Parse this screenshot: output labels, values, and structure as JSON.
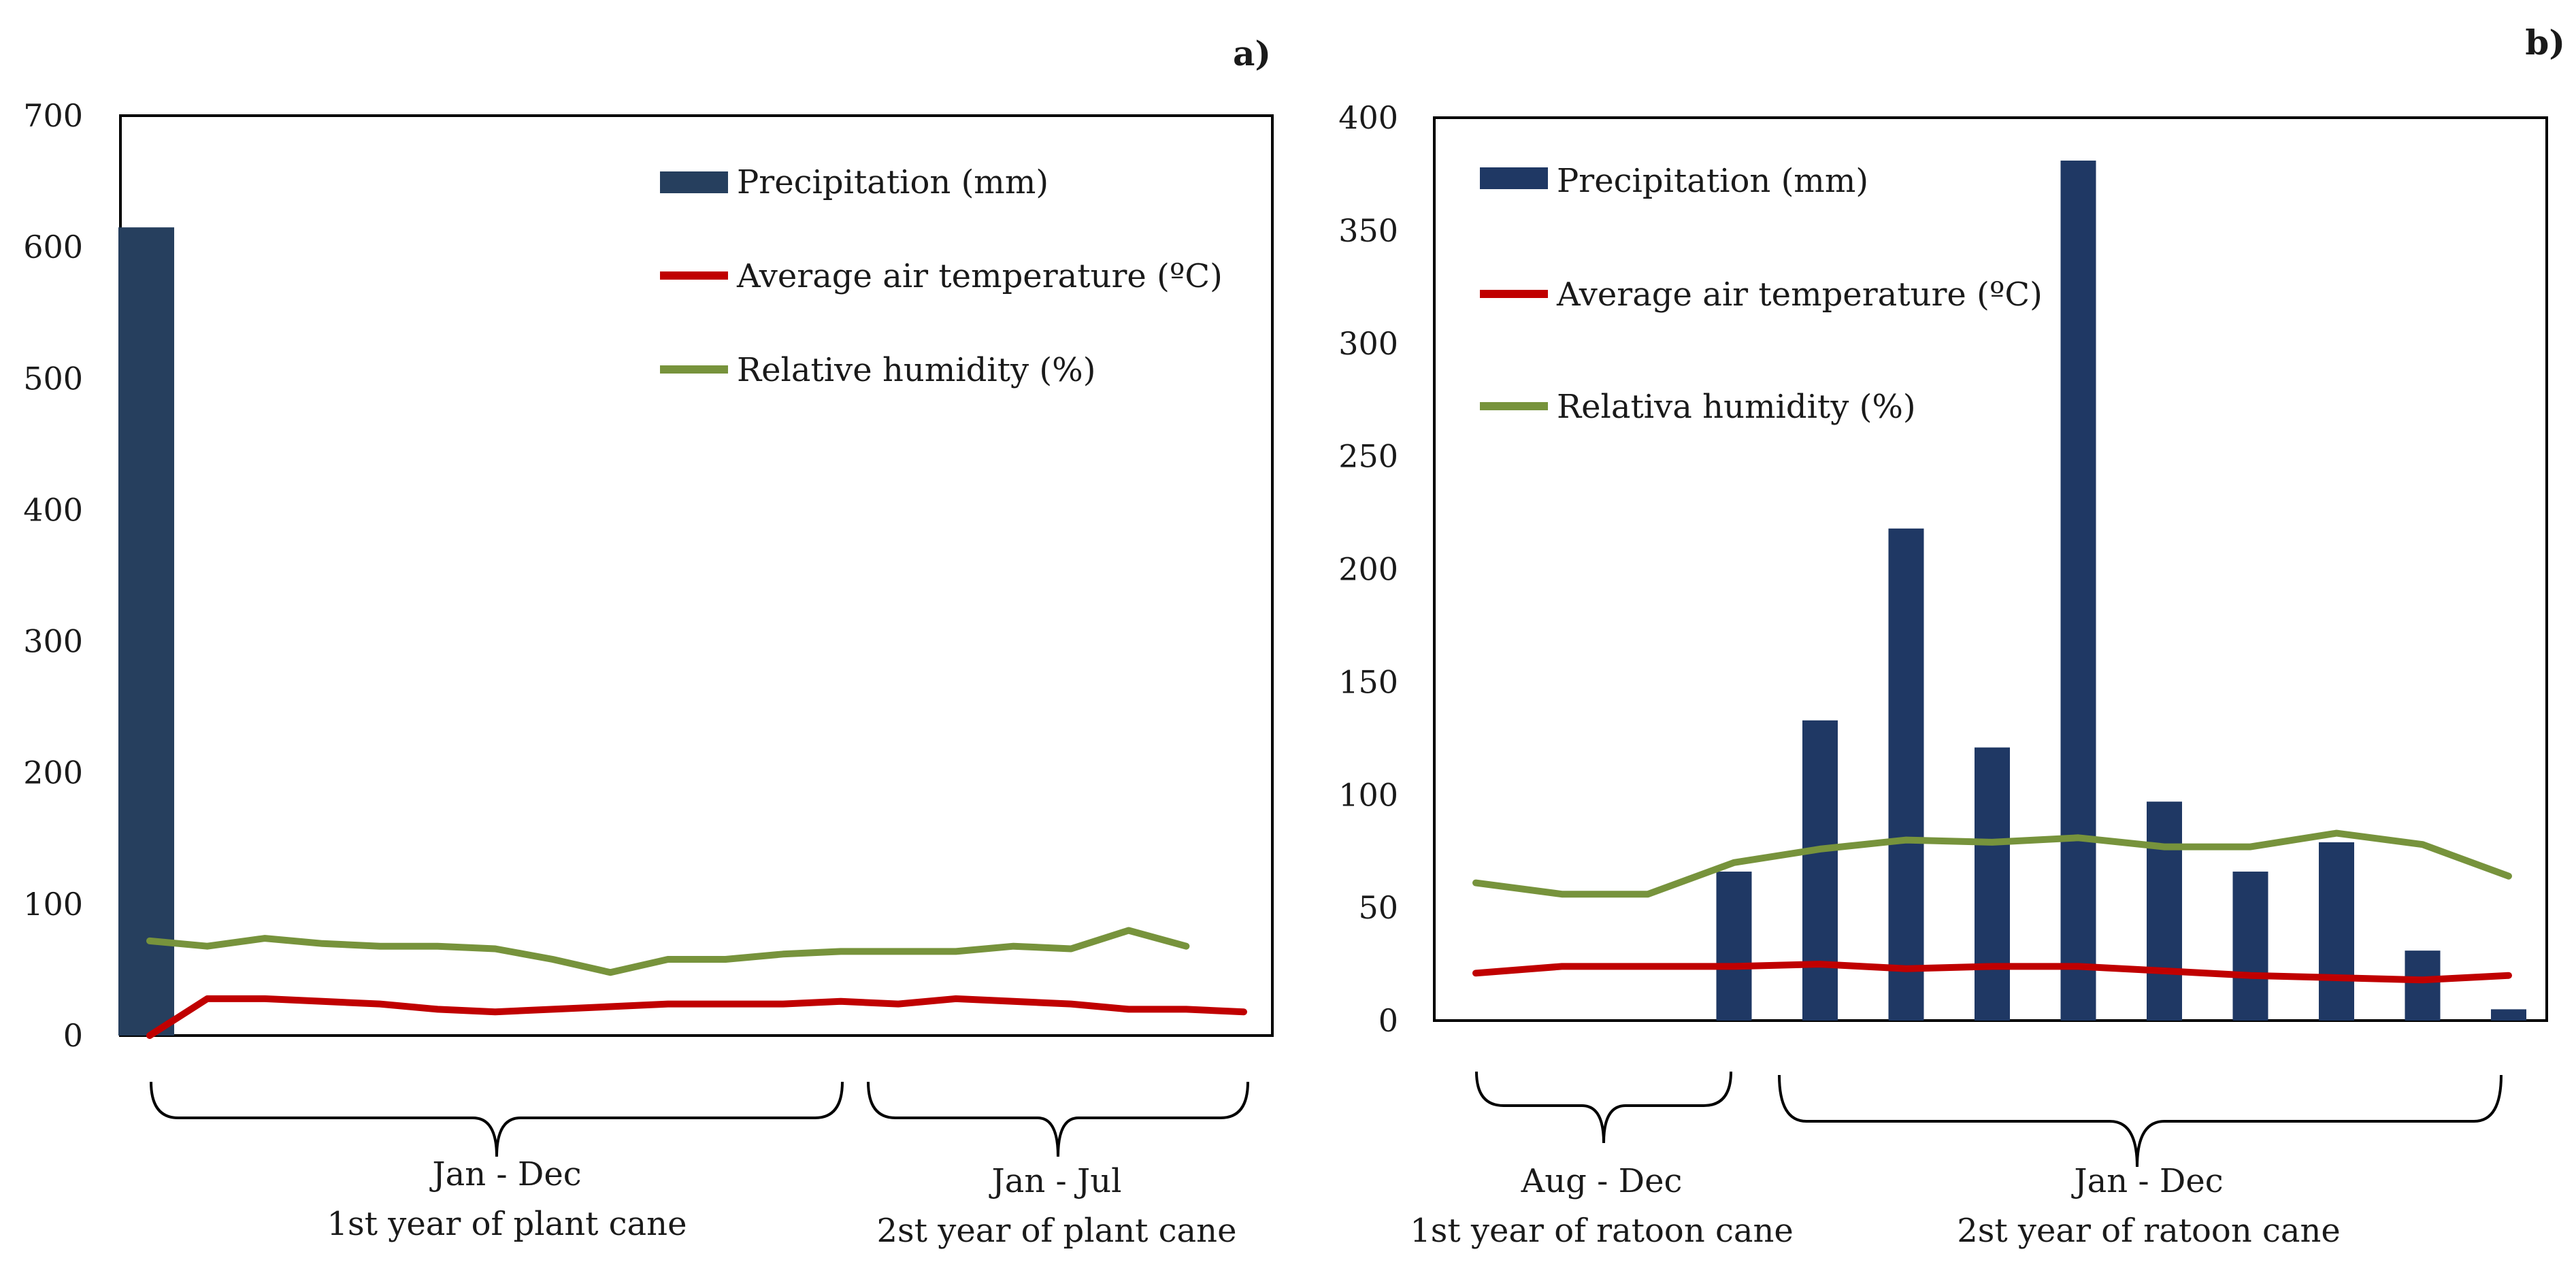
{
  "chart_data": [
    {
      "panel": "a)",
      "type": "bar+line",
      "yticks": [
        0,
        100,
        200,
        300,
        400,
        500,
        600,
        700
      ],
      "ylim": [
        0,
        700
      ],
      "x_points": 20,
      "series": [
        {
          "name": "Precipitation (mm)",
          "kind": "bar",
          "color": "#263f5e",
          "values": [
            615,
            0,
            0,
            0,
            0,
            0,
            0,
            0,
            0,
            0,
            0,
            0,
            0,
            0,
            0,
            0,
            0,
            0,
            0,
            0
          ]
        },
        {
          "name": "Average air temperature (ºC)",
          "kind": "line",
          "color": "#c00000",
          "values": [
            0,
            28,
            28,
            26,
            24,
            20,
            18,
            20,
            22,
            24,
            24,
            24,
            26,
            24,
            28,
            26,
            24,
            20,
            20,
            18
          ]
        },
        {
          "name": "Relative humidity (%)",
          "kind": "line",
          "color": "#77933c",
          "values": [
            72,
            68,
            74,
            70,
            68,
            68,
            66,
            58,
            48,
            58,
            58,
            62,
            64,
            64,
            64,
            68,
            66,
            80,
            68,
            null
          ]
        }
      ],
      "groups": [
        {
          "range": "Jan - Dec",
          "label": "1st year of plant cane"
        },
        {
          "range": "Jan - Jul",
          "label": "2st year of plant cane"
        }
      ]
    },
    {
      "panel": "b)",
      "type": "bar+line",
      "yticks": [
        0,
        50,
        100,
        150,
        200,
        250,
        300,
        350,
        400
      ],
      "ylim": [
        0,
        400
      ],
      "x_points": 13,
      "series": [
        {
          "name": "Precipitation (mm)",
          "kind": "bar",
          "color": "#1f3864",
          "values": [
            0,
            0,
            0,
            66,
            133,
            218,
            121,
            381,
            97,
            66,
            79,
            31,
            5
          ]
        },
        {
          "name": "Average air temperature (ºC)",
          "kind": "line",
          "color": "#c00000",
          "values": [
            21,
            24,
            24,
            24,
            25,
            23,
            24,
            24,
            22,
            20,
            19,
            18,
            20
          ]
        },
        {
          "name": "Relativa humidity (%)",
          "kind": "line",
          "color": "#77933c",
          "values": [
            61,
            56,
            56,
            70,
            76,
            80,
            79,
            81,
            77,
            77,
            83,
            78,
            64
          ]
        }
      ],
      "groups": [
        {
          "range": "Aug - Dec",
          "label": "1st year of ratoon cane"
        },
        {
          "range": "Jan - Dec",
          "label": "2st year of ratoon cane"
        }
      ]
    }
  ]
}
